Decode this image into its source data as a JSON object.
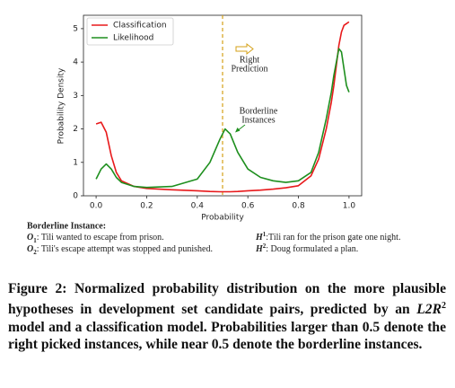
{
  "chart_data": {
    "type": "line",
    "xlabel": "Probability",
    "ylabel": "Probability Density",
    "x": [
      0,
      0.02,
      0.04,
      0.06,
      0.08,
      0.1,
      0.15,
      0.2,
      0.3,
      0.4,
      0.45,
      0.49,
      0.51,
      0.53,
      0.56,
      0.6,
      0.65,
      0.7,
      0.75,
      0.8,
      0.85,
      0.88,
      0.91,
      0.93,
      0.94,
      0.96,
      0.97,
      0.98,
      0.99,
      1.0
    ],
    "series": [
      {
        "name": "Classification",
        "color": "#e8191b",
        "values": [
          2.15,
          2.2,
          1.9,
          1.2,
          0.7,
          0.45,
          0.28,
          0.22,
          0.18,
          0.15,
          0.13,
          0.12,
          0.12,
          0.12,
          0.13,
          0.15,
          0.17,
          0.2,
          0.24,
          0.3,
          0.6,
          1.1,
          2.0,
          2.8,
          3.3,
          4.5,
          4.9,
          5.1,
          5.15,
          5.2
        ]
      },
      {
        "name": "Likelihood",
        "color": "#1e8f1e",
        "values": [
          0.5,
          0.8,
          0.95,
          0.8,
          0.55,
          0.4,
          0.28,
          0.25,
          0.28,
          0.5,
          1.0,
          1.7,
          2.0,
          1.85,
          1.3,
          0.8,
          0.55,
          0.45,
          0.4,
          0.45,
          0.7,
          1.3,
          2.3,
          3.1,
          3.6,
          4.4,
          4.3,
          3.8,
          3.3,
          3.1
        ]
      }
    ],
    "xlim": [
      -0.05,
      1.05
    ],
    "ylim": [
      0,
      5.4
    ],
    "xticks": [
      {
        "value": 0,
        "label": "0.0"
      },
      0.2,
      0.4,
      0.6,
      0.8,
      {
        "value": 1,
        "label": "1.0"
      }
    ],
    "yticks": [
      0,
      1,
      2,
      3,
      4,
      5
    ],
    "legend": "upper left",
    "vline": 0.5,
    "vline_color": "#d4a017",
    "annotations": [
      {
        "lines": [
          "Right",
          "Prediction"
        ]
      },
      {
        "lines": [
          "Borderline",
          "Instances"
        ]
      }
    ]
  },
  "example": {
    "heading": "Borderline Instance:",
    "observations": [
      {
        "symbol": "O",
        "index": "1",
        "text": ": Tili wanted to escape from prison."
      },
      {
        "symbol": "O",
        "index": "2",
        "text": ": Tili's escape attempt was stopped and punished."
      }
    ],
    "hypotheses": [
      {
        "symbol": "H",
        "index": "1",
        "text": ":Tili ran for the prison gate one night."
      },
      {
        "symbol": "H",
        "index": "2",
        "text": ": Doug formulated a plan."
      }
    ]
  },
  "caption": {
    "before": "Figure 2: Normalized probability distribution on the more plausible hypotheses in development set candidate pairs, predicted by an ",
    "model": "L2R",
    "model_sup": "2",
    "after": " model and a classification model. Probabilities larger than 0.5 denote the right picked instances, while near 0.5 denote the borderline instances."
  }
}
